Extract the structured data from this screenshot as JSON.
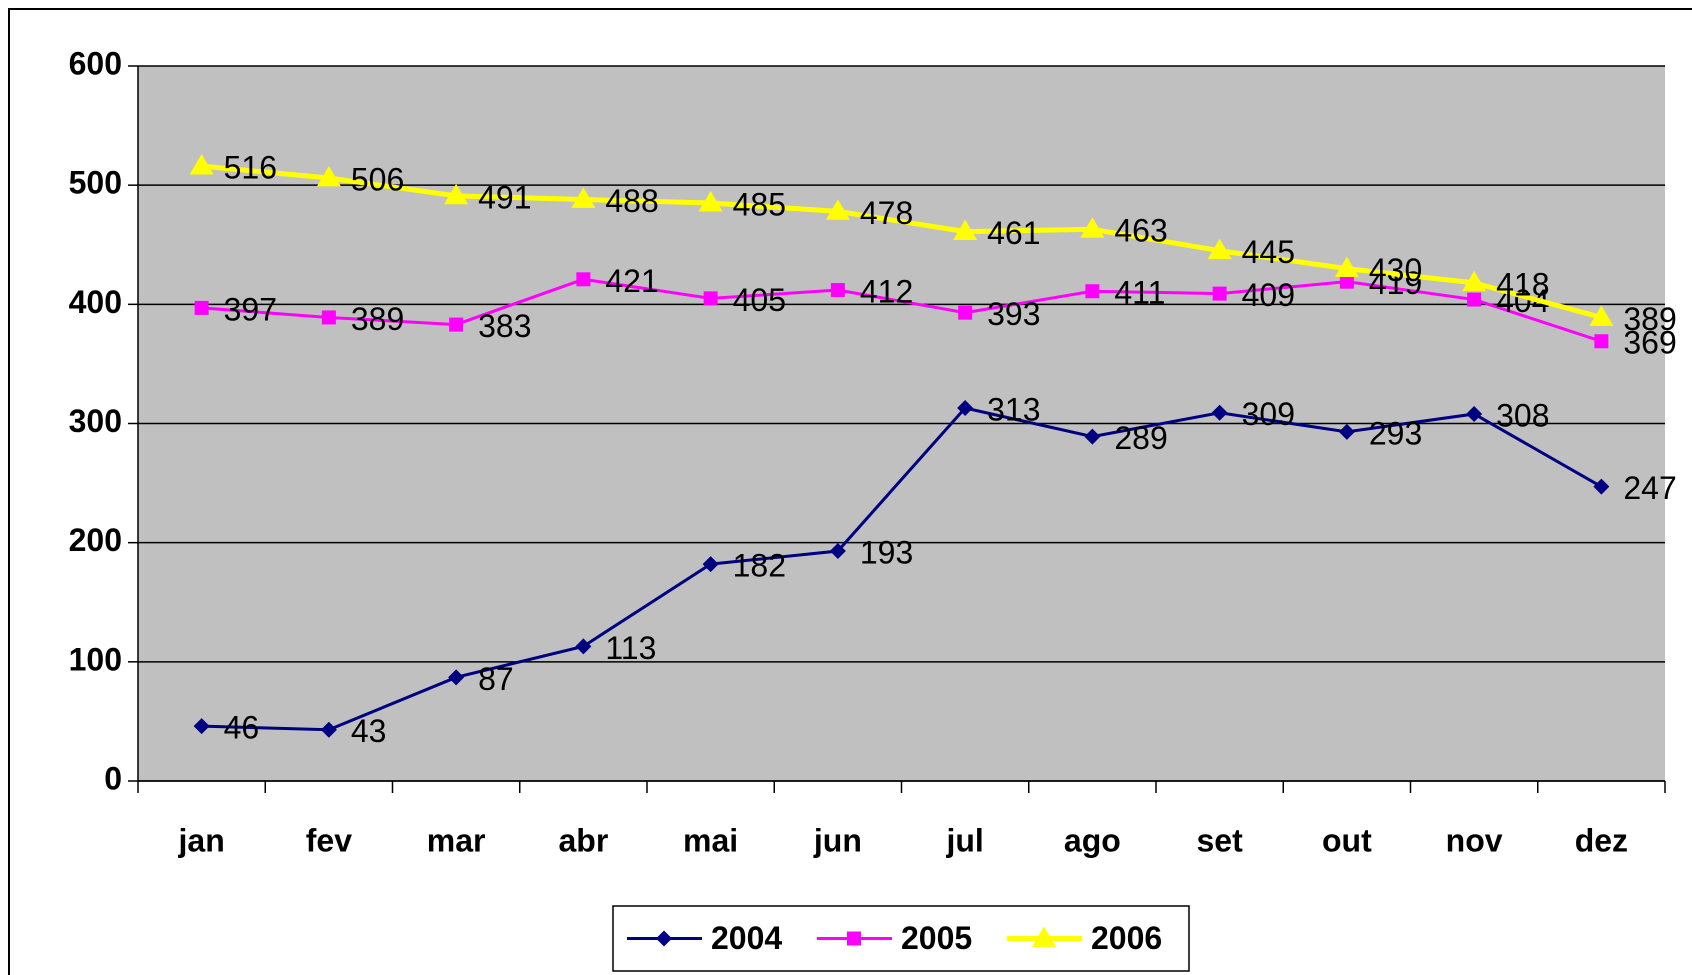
{
  "chart_data": {
    "type": "line",
    "categories": [
      "jan",
      "fev",
      "mar",
      "abr",
      "mai",
      "jun",
      "jul",
      "ago",
      "set",
      "out",
      "nov",
      "dez"
    ],
    "series": [
      {
        "name": "2004",
        "color": "#000080",
        "marker": "diamond",
        "values": [
          46,
          43,
          87,
          113,
          182,
          193,
          313,
          289,
          309,
          293,
          308,
          247
        ]
      },
      {
        "name": "2005",
        "color": "#ff00ff",
        "marker": "square",
        "values": [
          397,
          389,
          383,
          421,
          405,
          412,
          393,
          411,
          409,
          419,
          404,
          369
        ]
      },
      {
        "name": "2006",
        "color": "#ffff00",
        "marker": "triangle",
        "values": [
          516,
          506,
          491,
          488,
          485,
          478,
          461,
          463,
          445,
          430,
          418,
          389
        ]
      }
    ],
    "ylim": [
      0,
      600
    ],
    "yticks": [
      0,
      100,
      200,
      300,
      400,
      500,
      600
    ],
    "grid": true,
    "plot_background": "#c0c0c0",
    "legend": "bottom"
  }
}
